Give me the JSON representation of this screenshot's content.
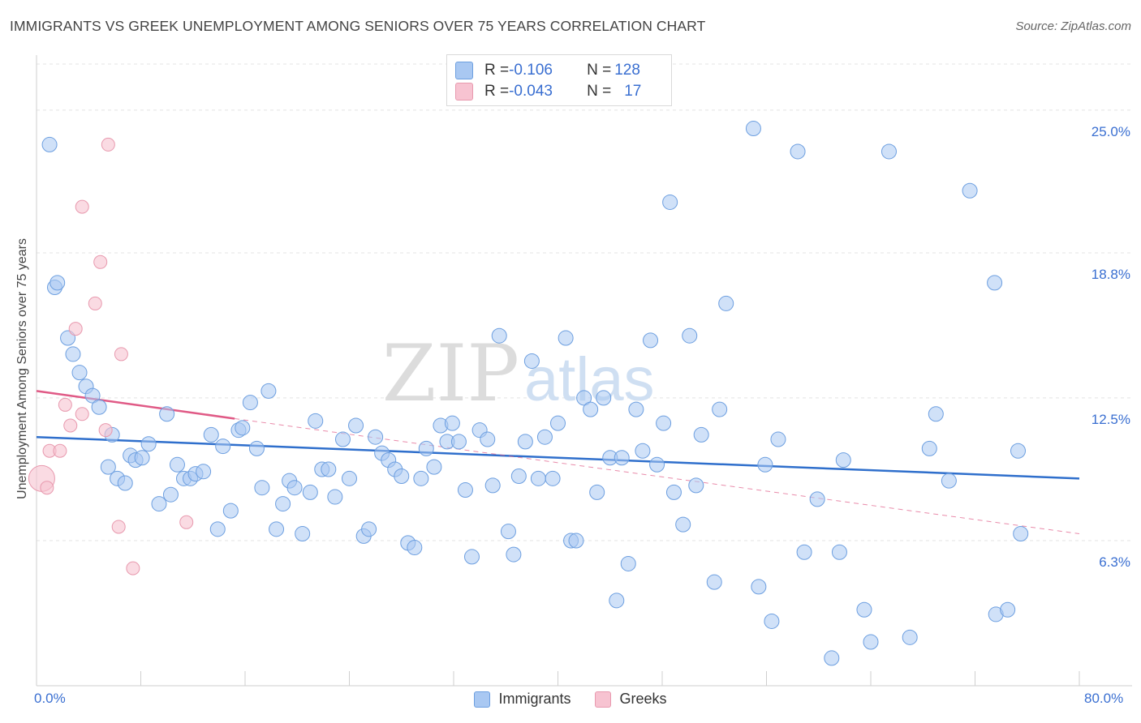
{
  "title": "IMMIGRANTS VS GREEK UNEMPLOYMENT AMONG SENIORS OVER 75 YEARS CORRELATION CHART",
  "source": "Source: ZipAtlas.com",
  "watermark": {
    "zip": "ZIP",
    "atlas": "atlas"
  },
  "colors": {
    "immigrants_fill": "#a9c8f2",
    "immigrants_stroke": "#6d9fe0",
    "immigrants_line": "#2f6fcc",
    "greeks_fill": "#f7c3d1",
    "greeks_stroke": "#e899ae",
    "greeks_line": "#e05a86",
    "grid": "#e3e3e3",
    "tick_text": "#3a6fd1"
  },
  "stats": {
    "row1": {
      "r_label": "R = ",
      "r_value": "-0.106",
      "n_label": "N = ",
      "n_value": "128"
    },
    "row2": {
      "r_label": "R = ",
      "r_value": "-0.043",
      "n_label": "N = ",
      "n_value": "17"
    }
  },
  "legend": {
    "immigrants": "Immigrants",
    "greeks": "Greeks"
  },
  "chart_data": {
    "type": "scatter",
    "title": "IMMIGRANTS VS GREEK UNEMPLOYMENT AMONG SENIORS OVER 75 YEARS CORRELATION CHART",
    "xlabel": "",
    "ylabel": "Unemployment Among Seniors over 75 years",
    "xlim": [
      0,
      80
    ],
    "ylim": [
      0,
      27
    ],
    "x_tick_labels": [
      "0.0%",
      "80.0%"
    ],
    "y_ticks": [
      6.3,
      12.5,
      18.8,
      25.0
    ],
    "y_tick_labels": [
      "6.3%",
      "12.5%",
      "18.8%",
      "25.0%"
    ],
    "series": [
      {
        "name": "Immigrants",
        "r": -0.106,
        "n": 128,
        "trend": {
          "x0": 0,
          "y0": 10.8,
          "x1": 80,
          "y1": 9.0
        },
        "points": [
          [
            1.0,
            23.5
          ],
          [
            1.4,
            17.3
          ],
          [
            1.6,
            17.5
          ],
          [
            2.4,
            15.1
          ],
          [
            2.8,
            14.4
          ],
          [
            3.3,
            13.6
          ],
          [
            3.8,
            13.0
          ],
          [
            4.3,
            12.6
          ],
          [
            4.8,
            12.1
          ],
          [
            5.5,
            9.5
          ],
          [
            5.8,
            10.9
          ],
          [
            6.2,
            9.0
          ],
          [
            6.8,
            8.8
          ],
          [
            7.2,
            10.0
          ],
          [
            7.6,
            9.8
          ],
          [
            8.1,
            9.9
          ],
          [
            8.6,
            10.5
          ],
          [
            9.4,
            7.9
          ],
          [
            10.0,
            11.8
          ],
          [
            10.3,
            8.3
          ],
          [
            10.8,
            9.6
          ],
          [
            11.3,
            9.0
          ],
          [
            11.8,
            9.0
          ],
          [
            12.2,
            9.2
          ],
          [
            12.8,
            9.3
          ],
          [
            13.4,
            10.9
          ],
          [
            13.9,
            6.8
          ],
          [
            14.3,
            10.4
          ],
          [
            14.9,
            7.6
          ],
          [
            15.5,
            11.1
          ],
          [
            15.8,
            11.2
          ],
          [
            16.4,
            12.3
          ],
          [
            16.9,
            10.3
          ],
          [
            17.3,
            8.6
          ],
          [
            17.8,
            12.8
          ],
          [
            18.4,
            6.8
          ],
          [
            18.9,
            7.9
          ],
          [
            19.4,
            8.9
          ],
          [
            19.8,
            8.6
          ],
          [
            20.4,
            6.6
          ],
          [
            21.0,
            8.4
          ],
          [
            21.4,
            11.5
          ],
          [
            21.9,
            9.4
          ],
          [
            22.4,
            9.4
          ],
          [
            22.9,
            8.2
          ],
          [
            23.5,
            10.7
          ],
          [
            24.0,
            9.0
          ],
          [
            24.5,
            11.3
          ],
          [
            25.1,
            6.5
          ],
          [
            25.5,
            6.8
          ],
          [
            26.0,
            10.8
          ],
          [
            26.5,
            10.1
          ],
          [
            27.0,
            9.8
          ],
          [
            27.5,
            9.4
          ],
          [
            28.0,
            9.1
          ],
          [
            28.5,
            6.2
          ],
          [
            29.0,
            6.0
          ],
          [
            29.5,
            9.0
          ],
          [
            29.9,
            10.3
          ],
          [
            30.5,
            9.5
          ],
          [
            31.0,
            11.3
          ],
          [
            31.5,
            10.6
          ],
          [
            31.9,
            11.4
          ],
          [
            32.4,
            10.6
          ],
          [
            32.9,
            8.5
          ],
          [
            33.4,
            5.6
          ],
          [
            34.0,
            11.1
          ],
          [
            34.6,
            10.7
          ],
          [
            35.0,
            8.7
          ],
          [
            35.5,
            15.2
          ],
          [
            36.2,
            6.7
          ],
          [
            36.6,
            5.7
          ],
          [
            37.0,
            9.1
          ],
          [
            37.5,
            10.6
          ],
          [
            38.0,
            14.1
          ],
          [
            38.5,
            9.0
          ],
          [
            39.0,
            10.8
          ],
          [
            39.6,
            9.0
          ],
          [
            40.0,
            11.4
          ],
          [
            40.6,
            15.1
          ],
          [
            41.0,
            6.3
          ],
          [
            41.4,
            6.3
          ],
          [
            42.0,
            12.5
          ],
          [
            42.5,
            12.0
          ],
          [
            43.0,
            8.4
          ],
          [
            43.5,
            12.5
          ],
          [
            44.0,
            9.9
          ],
          [
            44.5,
            3.7
          ],
          [
            44.9,
            9.9
          ],
          [
            45.4,
            5.3
          ],
          [
            46.0,
            12.0
          ],
          [
            46.5,
            10.2
          ],
          [
            47.1,
            15.0
          ],
          [
            47.6,
            9.6
          ],
          [
            48.1,
            11.4
          ],
          [
            48.6,
            21.0
          ],
          [
            48.9,
            8.4
          ],
          [
            49.6,
            7.0
          ],
          [
            50.1,
            15.2
          ],
          [
            50.6,
            8.7
          ],
          [
            51.0,
            10.9
          ],
          [
            52.0,
            4.5
          ],
          [
            52.4,
            12.0
          ],
          [
            52.9,
            16.6
          ],
          [
            55.0,
            24.2
          ],
          [
            55.4,
            4.3
          ],
          [
            55.9,
            9.6
          ],
          [
            56.4,
            2.8
          ],
          [
            56.9,
            10.7
          ],
          [
            58.4,
            23.2
          ],
          [
            58.9,
            5.8
          ],
          [
            59.9,
            8.1
          ],
          [
            61.0,
            1.2
          ],
          [
            61.6,
            5.8
          ],
          [
            61.9,
            9.8
          ],
          [
            63.5,
            3.3
          ],
          [
            64.0,
            1.9
          ],
          [
            65.4,
            23.2
          ],
          [
            67.0,
            2.1
          ],
          [
            68.5,
            10.3
          ],
          [
            69.0,
            11.8
          ],
          [
            70.0,
            8.9
          ],
          [
            71.6,
            21.5
          ],
          [
            73.5,
            17.5
          ],
          [
            73.6,
            3.1
          ],
          [
            74.5,
            3.3
          ],
          [
            75.3,
            10.2
          ],
          [
            75.5,
            6.6
          ]
        ]
      },
      {
        "name": "Greeks",
        "r": -0.043,
        "n": 17,
        "trend": {
          "x0": 0,
          "y0": 12.8,
          "x1": 15.2,
          "y1": 11.6
        },
        "trend_extension": {
          "x0": 15.2,
          "y0": 11.6,
          "x1": 80,
          "y1": 6.6
        },
        "points": [
          [
            5.5,
            23.5
          ],
          [
            3.5,
            20.8
          ],
          [
            4.9,
            18.4
          ],
          [
            4.5,
            16.6
          ],
          [
            3.0,
            15.5
          ],
          [
            6.5,
            14.4
          ],
          [
            2.2,
            12.2
          ],
          [
            3.5,
            11.8
          ],
          [
            2.6,
            11.3
          ],
          [
            5.3,
            11.1
          ],
          [
            1.0,
            10.2
          ],
          [
            1.8,
            10.2
          ],
          [
            6.3,
            6.9
          ],
          [
            11.5,
            7.1
          ],
          [
            7.4,
            5.1
          ],
          [
            0.4,
            9.0
          ],
          [
            0.8,
            8.6
          ]
        ],
        "large_points": [
          [
            0.4,
            9.0
          ]
        ]
      }
    ]
  }
}
